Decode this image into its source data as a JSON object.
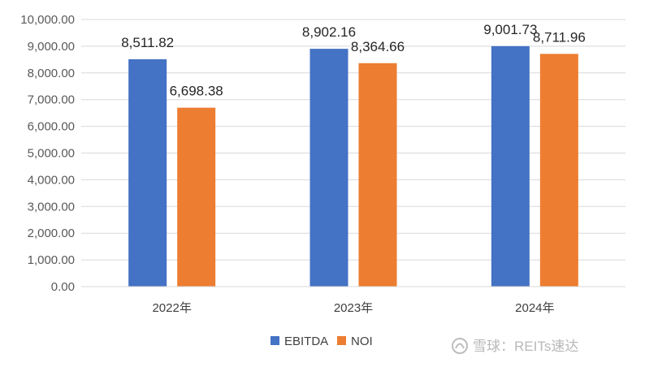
{
  "chart_data": {
    "type": "bar",
    "categories": [
      "2022年",
      "2023年",
      "2024年"
    ],
    "series": [
      {
        "name": "EBITDA",
        "values": [
          8511.82,
          8902.16,
          9001.73
        ],
        "labels": [
          "8,511.82",
          "8,902.16",
          "9,001.73"
        ],
        "color": "#4472C4"
      },
      {
        "name": "NOI",
        "values": [
          6698.38,
          8364.66,
          8711.96
        ],
        "labels": [
          "6,698.38",
          "8,364.66",
          "8,711.96"
        ],
        "color": "#ED7D31"
      }
    ],
    "ylim": [
      0,
      10000
    ],
    "yticks": [
      0,
      1000,
      2000,
      3000,
      4000,
      5000,
      6000,
      7000,
      8000,
      9000,
      10000
    ],
    "ytick_labels": [
      "0.00",
      "1,000.00",
      "2,000.00",
      "3,000.00",
      "4,000.00",
      "5,000.00",
      "6,000.00",
      "7,000.00",
      "8,000.00",
      "9,000.00",
      "10,000.00"
    ],
    "grid": true,
    "legend": "bottom",
    "gridline_color": "#d9d9d9"
  },
  "watermark": {
    "text": "雪球：REITs速达",
    "icon": "snowball-logo-icon"
  }
}
